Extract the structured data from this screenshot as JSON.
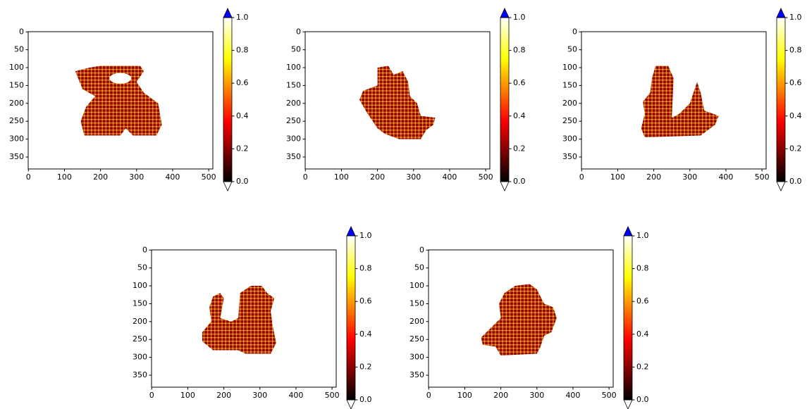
{
  "chart_data": [
    {
      "type": "heatmap",
      "xlim": [
        -0.5,
        511.5
      ],
      "ylim": [
        383.5,
        -0.5
      ],
      "xticks": [
        0,
        100,
        200,
        300,
        400,
        500
      ],
      "yticks": [
        0,
        50,
        100,
        150,
        200,
        250,
        300,
        350
      ],
      "colorbar": {
        "cmap": "hot",
        "clim": [
          0,
          1
        ],
        "extend": "both",
        "over_color": "#0000ff",
        "under_color": "#ffffff",
        "ticks": [
          {
            "value": 0,
            "label": "0.0"
          },
          {
            "value": 0.2,
            "label": "0.2"
          },
          {
            "value": 0.4,
            "label": "0.4"
          },
          {
            "value": 0.6,
            "label": "0.6"
          },
          {
            "value": 0.8,
            "label": "0.8"
          },
          {
            "value": 1,
            "label": "1.0"
          }
        ]
      }
    },
    {
      "type": "heatmap",
      "xlim": [
        -0.5,
        511.5
      ],
      "ylim": [
        383.5,
        -0.5
      ],
      "xticks": [
        0,
        100,
        200,
        300,
        400,
        500
      ],
      "yticks": [
        0,
        50,
        100,
        150,
        200,
        250,
        300,
        350
      ],
      "colorbar": {
        "cmap": "hot",
        "clim": [
          0,
          1
        ],
        "extend": "both",
        "over_color": "#0000ff",
        "under_color": "#ffffff",
        "ticks": [
          {
            "value": 0,
            "label": "0.0"
          },
          {
            "value": 0.2,
            "label": "0.2"
          },
          {
            "value": 0.4,
            "label": "0.4"
          },
          {
            "value": 0.6,
            "label": "0.6"
          },
          {
            "value": 0.8,
            "label": "0.8"
          },
          {
            "value": 1,
            "label": "1.0"
          }
        ]
      }
    },
    {
      "type": "heatmap",
      "xlim": [
        -0.5,
        511.5
      ],
      "ylim": [
        383.5,
        -0.5
      ],
      "xticks": [
        0,
        100,
        200,
        300,
        400,
        500
      ],
      "yticks": [
        0,
        50,
        100,
        150,
        200,
        250,
        300,
        350
      ],
      "colorbar": {
        "cmap": "hot",
        "clim": [
          0,
          1
        ],
        "extend": "both",
        "over_color": "#0000ff",
        "under_color": "#ffffff",
        "ticks": [
          {
            "value": 0,
            "label": "0.0"
          },
          {
            "value": 0.2,
            "label": "0.2"
          },
          {
            "value": 0.4,
            "label": "0.4"
          },
          {
            "value": 0.6,
            "label": "0.6"
          },
          {
            "value": 0.8,
            "label": "0.8"
          },
          {
            "value": 1,
            "label": "1.0"
          }
        ]
      }
    },
    {
      "type": "heatmap",
      "xlim": [
        -0.5,
        511.5
      ],
      "ylim": [
        383.5,
        -0.5
      ],
      "xticks": [
        0,
        100,
        200,
        300,
        400,
        500
      ],
      "yticks": [
        0,
        50,
        100,
        150,
        200,
        250,
        300,
        350
      ],
      "colorbar": {
        "cmap": "hot",
        "clim": [
          0,
          1
        ],
        "extend": "both",
        "over_color": "#0000ff",
        "under_color": "#ffffff",
        "ticks": [
          {
            "value": 0,
            "label": "0.0"
          },
          {
            "value": 0.2,
            "label": "0.2"
          },
          {
            "value": 0.4,
            "label": "0.4"
          },
          {
            "value": 0.6,
            "label": "0.6"
          },
          {
            "value": 0.8,
            "label": "0.8"
          },
          {
            "value": 1,
            "label": "1.0"
          }
        ]
      }
    },
    {
      "type": "heatmap",
      "xlim": [
        -0.5,
        511.5
      ],
      "ylim": [
        383.5,
        -0.5
      ],
      "xticks": [
        0,
        100,
        200,
        300,
        400,
        500
      ],
      "yticks": [
        0,
        50,
        100,
        150,
        200,
        250,
        300,
        350
      ],
      "colorbar": {
        "cmap": "hot",
        "clim": [
          0,
          1
        ],
        "extend": "both",
        "over_color": "#0000ff",
        "under_color": "#ffffff",
        "ticks": [
          {
            "value": 0,
            "label": "0.0"
          },
          {
            "value": 0.2,
            "label": "0.2"
          },
          {
            "value": 0.4,
            "label": "0.4"
          },
          {
            "value": 0.6,
            "label": "0.6"
          },
          {
            "value": 0.8,
            "label": "0.8"
          },
          {
            "value": 1,
            "label": "1.0"
          }
        ]
      }
    }
  ]
}
